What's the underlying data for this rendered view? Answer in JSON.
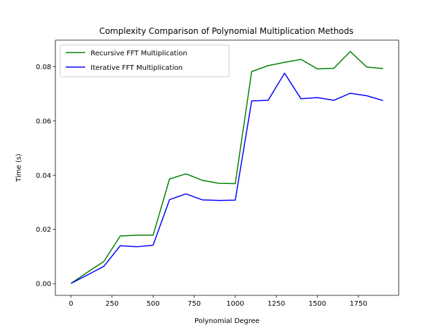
{
  "chart_data": {
    "type": "line",
    "title": "Complexity Comparison of Polynomial Multiplication Methods",
    "xlabel": "Polynomial Degree",
    "ylabel": "Time (s)",
    "xlim": [
      -95,
      1995
    ],
    "ylim": [
      -0.0043,
      0.0898
    ],
    "xticks": [
      0,
      250,
      500,
      750,
      1000,
      1250,
      1500,
      1750
    ],
    "xtick_labels": [
      "0",
      "250",
      "500",
      "750",
      "1000",
      "1250",
      "1500",
      "1750"
    ],
    "yticks": [
      0.0,
      0.02,
      0.04,
      0.06,
      0.08
    ],
    "ytick_labels": [
      "0.00",
      "0.02",
      "0.04",
      "0.06",
      "0.08"
    ],
    "grid": false,
    "legend_position": "upper-left",
    "x": [
      0,
      100,
      200,
      300,
      400,
      500,
      600,
      700,
      800,
      900,
      1000,
      1100,
      1200,
      1300,
      1400,
      1500,
      1600,
      1700,
      1800,
      1900
    ],
    "series": [
      {
        "name": "Recursive FFT Multiplication",
        "color": "#008000",
        "values": [
          0.0001,
          0.0042,
          0.0082,
          0.0176,
          0.0179,
          0.0179,
          0.0386,
          0.0405,
          0.0381,
          0.037,
          0.0369,
          0.0782,
          0.0804,
          0.0816,
          0.0827,
          0.0792,
          0.0794,
          0.0856,
          0.0799,
          0.0793
        ]
      },
      {
        "name": "Iterative FFT Multiplication",
        "color": "#0000ff",
        "values": [
          0.0001,
          0.0032,
          0.0064,
          0.014,
          0.0136,
          0.0142,
          0.031,
          0.0331,
          0.0309,
          0.0307,
          0.0308,
          0.0674,
          0.0676,
          0.0776,
          0.0682,
          0.0686,
          0.0676,
          0.0702,
          0.0693,
          0.0675
        ]
      }
    ]
  }
}
